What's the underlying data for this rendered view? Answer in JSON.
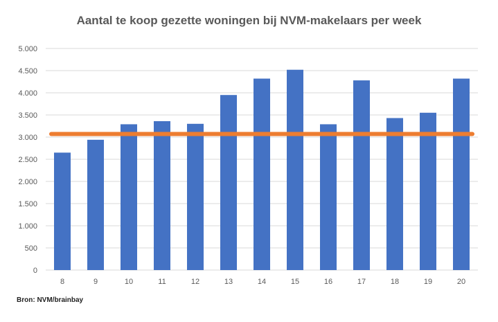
{
  "chart_data": {
    "type": "bar",
    "title": "Aantal te koop gezette woningen bij NVM-makelaars per week",
    "categories": [
      "8",
      "9",
      "10",
      "11",
      "12",
      "13",
      "14",
      "15",
      "16",
      "17",
      "18",
      "19",
      "20"
    ],
    "series": [
      {
        "type": "bar",
        "values": [
          2650,
          2940,
          3290,
          3360,
          3300,
          3950,
          4320,
          4520,
          3290,
          4280,
          3430,
          3550,
          4320
        ],
        "color": "#4472C4"
      },
      {
        "type": "line",
        "values": [
          3070,
          3070,
          3070,
          3070,
          3070,
          3070,
          3070,
          3070,
          3070,
          3070,
          3070,
          3070,
          3070
        ],
        "color": "#ED7D31"
      }
    ],
    "ylim": [
      0,
      5000
    ],
    "yticks": [
      {
        "value": 0,
        "label": "0"
      },
      {
        "value": 500,
        "label": "500"
      },
      {
        "value": 1000,
        "label": "1.000"
      },
      {
        "value": 1500,
        "label": "1.500"
      },
      {
        "value": 2000,
        "label": "2.000"
      },
      {
        "value": 2500,
        "label": "2.500"
      },
      {
        "value": 3000,
        "label": "3.000"
      },
      {
        "value": 3500,
        "label": "3.500"
      },
      {
        "value": 4000,
        "label": "4.000"
      },
      {
        "value": 4500,
        "label": "4.500"
      },
      {
        "value": 5000,
        "label": "5.000"
      }
    ],
    "grid": true,
    "legend": "none"
  },
  "source": "Bron: NVM/brainbay"
}
